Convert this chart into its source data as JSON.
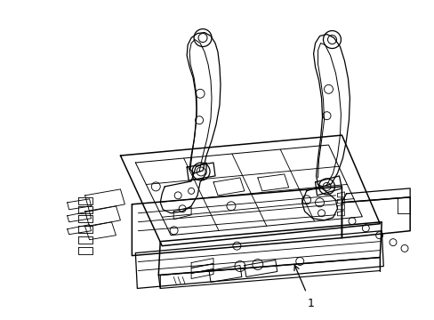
{
  "background_color": "#ffffff",
  "line_color": "#000000",
  "label_text": "1",
  "figsize": [
    4.89,
    3.6
  ],
  "dpi": 100
}
